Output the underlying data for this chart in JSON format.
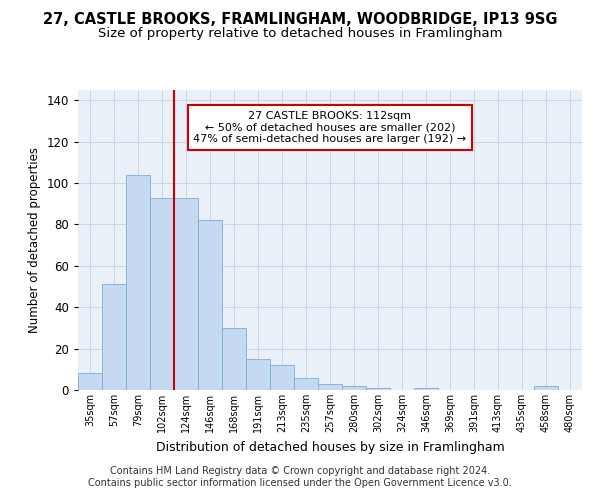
{
  "title_line1": "27, CASTLE BROOKS, FRAMLINGHAM, WOODBRIDGE, IP13 9SG",
  "title_line2": "Size of property relative to detached houses in Framlingham",
  "xlabel": "Distribution of detached houses by size in Framlingham",
  "ylabel": "Number of detached properties",
  "categories": [
    "35sqm",
    "57sqm",
    "79sqm",
    "102sqm",
    "124sqm",
    "146sqm",
    "168sqm",
    "191sqm",
    "213sqm",
    "235sqm",
    "257sqm",
    "280sqm",
    "302sqm",
    "324sqm",
    "346sqm",
    "369sqm",
    "391sqm",
    "413sqm",
    "435sqm",
    "458sqm",
    "480sqm"
  ],
  "values": [
    8,
    51,
    104,
    93,
    93,
    82,
    30,
    15,
    12,
    6,
    3,
    2,
    1,
    0,
    1,
    0,
    0,
    0,
    0,
    2,
    0
  ],
  "bar_color": "#c5d9f0",
  "bar_edge_color": "#7bafd4",
  "vline_x": 3.5,
  "vline_color": "#cc0000",
  "annotation_text": "27 CASTLE BROOKS: 112sqm\n← 50% of detached houses are smaller (202)\n47% of semi-detached houses are larger (192) →",
  "annotation_box_color": "#ffffff",
  "annotation_box_edge": "#cc0000",
  "ylim": [
    0,
    145
  ],
  "yticks": [
    0,
    20,
    40,
    60,
    80,
    100,
    120,
    140
  ],
  "footer_text": "Contains HM Land Registry data © Crown copyright and database right 2024.\nContains public sector information licensed under the Open Government Licence v3.0.",
  "background_color": "#ffffff",
  "plot_bg_color": "#eaf0f8",
  "grid_color": "#c8d4e8"
}
